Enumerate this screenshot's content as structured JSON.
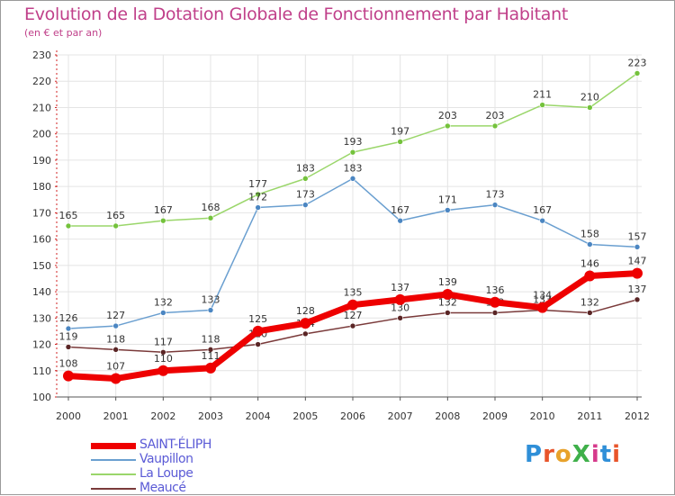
{
  "title": "Evolution de la Dotation Globale de Fonctionnement par Habitant",
  "subtitle": "(en € et par an)",
  "logo": {
    "text": "ProXiti",
    "letter_colors": [
      "#2f8fd8",
      "#e8552b",
      "#e8a22b",
      "#3fb04a",
      "#d63a8c",
      "#2f8fd8",
      "#e8552b"
    ]
  },
  "chart_data": {
    "type": "line",
    "categories": [
      "2000",
      "2001",
      "2002",
      "2003",
      "2004",
      "2005",
      "2006",
      "2007",
      "2008",
      "2009",
      "2010",
      "2011",
      "2012"
    ],
    "ylim": [
      100,
      230
    ],
    "yticks": [
      100,
      110,
      120,
      130,
      140,
      150,
      160,
      170,
      180,
      190,
      200,
      210,
      220,
      230
    ],
    "grid": true,
    "legend_position": "bottom-left",
    "series": [
      {
        "name": "La Loupe",
        "color": "#9ad66a",
        "marker": "#74c23c",
        "width": 1.5,
        "values": [
          165,
          165,
          167,
          168,
          177,
          183,
          193,
          197,
          203,
          203,
          211,
          210,
          223
        ]
      },
      {
        "name": "Vaupillon",
        "color": "#6a9fd0",
        "marker": "#4b86c2",
        "width": 1.5,
        "values": [
          126,
          127,
          132,
          133,
          172,
          173,
          183,
          167,
          171,
          173,
          167,
          158,
          157
        ]
      },
      {
        "name": "Meaucé",
        "color": "#7a3a3a",
        "marker": "#5a2525",
        "width": 1.5,
        "values": [
          119,
          118,
          117,
          118,
          120,
          124,
          127,
          130,
          132,
          132,
          133,
          132,
          137
        ]
      },
      {
        "name": "SAINT-ÉLIPH",
        "color": "#ee0000",
        "marker": "#ee0000",
        "width": 7,
        "values": [
          108,
          107,
          110,
          111,
          125,
          128,
          135,
          137,
          139,
          136,
          134,
          146,
          147
        ]
      }
    ]
  },
  "legend": [
    {
      "label": "SAINT-ÉLIPH",
      "color": "#ee0000",
      "width": 7
    },
    {
      "label": "Vaupillon",
      "color": "#6a9fd0",
      "width": 1.5
    },
    {
      "label": "La Loupe",
      "color": "#9ad66a",
      "width": 1.5
    },
    {
      "label": "Meaucé",
      "color": "#7a3a3a",
      "width": 1.5
    }
  ]
}
